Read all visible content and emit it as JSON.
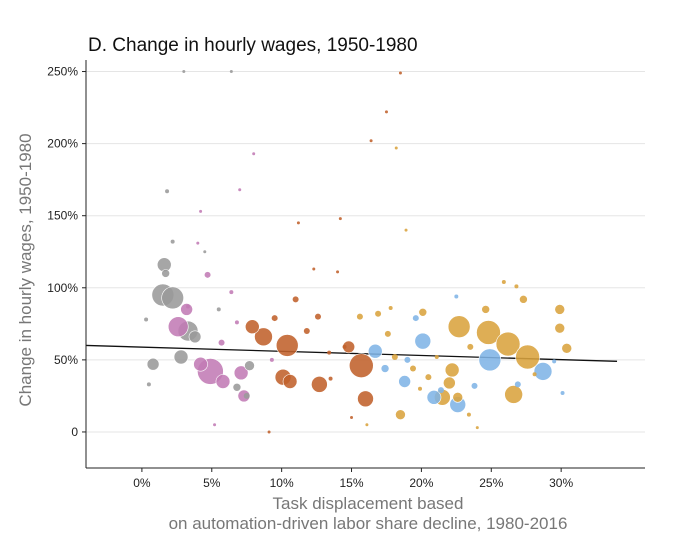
{
  "chart_data": {
    "type": "scatter",
    "title": "D. Change in hourly wages, 1950-1980",
    "xlabel": [
      "Task displacement based",
      "on automation-driven labor share decline, 1980-2016"
    ],
    "ylabel": "Change in hourly wages, 1950-1980",
    "xlim": [
      -4,
      36
    ],
    "ylim": [
      -25,
      258
    ],
    "x_ticks": [
      0,
      5,
      10,
      15,
      20,
      25,
      30
    ],
    "x_tick_labels": [
      "0%",
      "5%",
      "10%",
      "15%",
      "20%",
      "25%",
      "30%"
    ],
    "y_ticks": [
      0,
      50,
      100,
      150,
      200,
      250
    ],
    "y_tick_labels": [
      "0",
      "50%",
      "100%",
      "150%",
      "200%",
      "250%"
    ],
    "grid": "horizontal",
    "legend": "none",
    "colors": {
      "gray": "#9a9a9a",
      "pink": "#c27bb5",
      "brown": "#c0612b",
      "blue": "#80b4e6",
      "gold": "#d9a33d"
    },
    "fit_line": {
      "x": [
        -4,
        34
      ],
      "y": [
        60,
        49
      ]
    },
    "points": [
      {
        "x": 1.5,
        "y": 95,
        "s": 11,
        "g": "gray"
      },
      {
        "x": 2.2,
        "y": 93,
        "s": 11,
        "g": "gray"
      },
      {
        "x": 3.3,
        "y": 70,
        "s": 10,
        "g": "gray"
      },
      {
        "x": 1.6,
        "y": 116,
        "s": 7,
        "g": "gray"
      },
      {
        "x": 2.8,
        "y": 52,
        "s": 7,
        "g": "gray"
      },
      {
        "x": 0.8,
        "y": 47,
        "s": 6,
        "g": "gray"
      },
      {
        "x": 1.7,
        "y": 110,
        "s": 4,
        "g": "gray"
      },
      {
        "x": 3.8,
        "y": 66,
        "s": 6,
        "g": "gray"
      },
      {
        "x": 6.8,
        "y": 31,
        "s": 4,
        "g": "gray"
      },
      {
        "x": 7.7,
        "y": 46,
        "s": 5,
        "g": "gray"
      },
      {
        "x": 7.5,
        "y": 25,
        "s": 3,
        "g": "gray"
      },
      {
        "x": 0.5,
        "y": 33,
        "s": 2,
        "g": "gray"
      },
      {
        "x": 1.8,
        "y": 167,
        "s": 2,
        "g": "gray"
      },
      {
        "x": 2.2,
        "y": 132,
        "s": 2,
        "g": "gray"
      },
      {
        "x": 4.5,
        "y": 125,
        "s": 1.5,
        "g": "gray"
      },
      {
        "x": 3.0,
        "y": 250,
        "s": 1.5,
        "g": "gray"
      },
      {
        "x": 6.4,
        "y": 250,
        "s": 1.5,
        "g": "gray"
      },
      {
        "x": 5.5,
        "y": 85,
        "s": 2,
        "g": "gray"
      },
      {
        "x": 0.3,
        "y": 78,
        "s": 2,
        "g": "gray"
      },
      {
        "x": 2.6,
        "y": 73,
        "s": 10,
        "g": "pink"
      },
      {
        "x": 4.9,
        "y": 42,
        "s": 13,
        "g": "pink"
      },
      {
        "x": 4.2,
        "y": 47,
        "s": 7,
        "g": "pink"
      },
      {
        "x": 5.8,
        "y": 35,
        "s": 7,
        "g": "pink"
      },
      {
        "x": 7.1,
        "y": 41,
        "s": 7,
        "g": "pink"
      },
      {
        "x": 7.3,
        "y": 25,
        "s": 6,
        "g": "pink"
      },
      {
        "x": 3.2,
        "y": 85,
        "s": 6,
        "g": "pink"
      },
      {
        "x": 4.7,
        "y": 109,
        "s": 3,
        "g": "pink"
      },
      {
        "x": 5.7,
        "y": 62,
        "s": 3,
        "g": "pink"
      },
      {
        "x": 6.8,
        "y": 76,
        "s": 2,
        "g": "pink"
      },
      {
        "x": 8.0,
        "y": 193,
        "s": 1.5,
        "g": "pink"
      },
      {
        "x": 7.0,
        "y": 168,
        "s": 1.5,
        "g": "pink"
      },
      {
        "x": 4.0,
        "y": 131,
        "s": 1.5,
        "g": "pink"
      },
      {
        "x": 3.3,
        "y": 87,
        "s": 2,
        "g": "pink"
      },
      {
        "x": 9.3,
        "y": 50,
        "s": 2,
        "g": "pink"
      },
      {
        "x": 4.2,
        "y": 153,
        "s": 1.5,
        "g": "pink"
      },
      {
        "x": 5.2,
        "y": 5,
        "s": 1.5,
        "g": "pink"
      },
      {
        "x": 6.4,
        "y": 97,
        "s": 2,
        "g": "pink"
      },
      {
        "x": 10.4,
        "y": 60,
        "s": 11,
        "g": "brown"
      },
      {
        "x": 8.7,
        "y": 66,
        "s": 9,
        "g": "brown"
      },
      {
        "x": 10.1,
        "y": 38,
        "s": 8,
        "g": "brown"
      },
      {
        "x": 12.7,
        "y": 33,
        "s": 8,
        "g": "brown"
      },
      {
        "x": 7.9,
        "y": 73,
        "s": 7,
        "g": "brown"
      },
      {
        "x": 10.6,
        "y": 35,
        "s": 7,
        "g": "brown"
      },
      {
        "x": 14.8,
        "y": 59,
        "s": 6,
        "g": "brown"
      },
      {
        "x": 16.0,
        "y": 23,
        "s": 8,
        "g": "brown"
      },
      {
        "x": 15.7,
        "y": 46,
        "s": 12,
        "g": "brown"
      },
      {
        "x": 11.0,
        "y": 92,
        "s": 3,
        "g": "brown"
      },
      {
        "x": 9.5,
        "y": 79,
        "s": 3,
        "g": "brown"
      },
      {
        "x": 11.8,
        "y": 70,
        "s": 3,
        "g": "brown"
      },
      {
        "x": 12.6,
        "y": 80,
        "s": 3,
        "g": "brown"
      },
      {
        "x": 13.5,
        "y": 37,
        "s": 2,
        "g": "brown"
      },
      {
        "x": 14.5,
        "y": 59,
        "s": 2,
        "g": "brown"
      },
      {
        "x": 14.0,
        "y": 111,
        "s": 1.5,
        "g": "brown"
      },
      {
        "x": 14.2,
        "y": 148,
        "s": 1.5,
        "g": "brown"
      },
      {
        "x": 11.2,
        "y": 145,
        "s": 1.5,
        "g": "brown"
      },
      {
        "x": 12.3,
        "y": 113,
        "s": 1.5,
        "g": "brown"
      },
      {
        "x": 15.0,
        "y": 10,
        "s": 1.5,
        "g": "brown"
      },
      {
        "x": 16.4,
        "y": 202,
        "s": 1.5,
        "g": "brown"
      },
      {
        "x": 17.5,
        "y": 222,
        "s": 1.5,
        "g": "brown"
      },
      {
        "x": 18.5,
        "y": 249,
        "s": 1.5,
        "g": "brown"
      },
      {
        "x": 13.4,
        "y": 55,
        "s": 2,
        "g": "brown"
      },
      {
        "x": 9.1,
        "y": 0,
        "s": 1.5,
        "g": "brown"
      },
      {
        "x": 16.7,
        "y": 56,
        "s": 7,
        "g": "blue"
      },
      {
        "x": 18.8,
        "y": 35,
        "s": 6,
        "g": "blue"
      },
      {
        "x": 20.9,
        "y": 24,
        "s": 7,
        "g": "blue"
      },
      {
        "x": 20.1,
        "y": 63,
        "s": 8,
        "g": "blue"
      },
      {
        "x": 22.6,
        "y": 19,
        "s": 8,
        "g": "blue"
      },
      {
        "x": 24.9,
        "y": 50,
        "s": 11,
        "g": "blue"
      },
      {
        "x": 28.7,
        "y": 42,
        "s": 9,
        "g": "blue"
      },
      {
        "x": 17.4,
        "y": 44,
        "s": 4,
        "g": "blue"
      },
      {
        "x": 19.6,
        "y": 79,
        "s": 3,
        "g": "blue"
      },
      {
        "x": 21.4,
        "y": 29,
        "s": 3,
        "g": "blue"
      },
      {
        "x": 23.8,
        "y": 32,
        "s": 3,
        "g": "blue"
      },
      {
        "x": 26.9,
        "y": 33,
        "s": 3,
        "g": "blue"
      },
      {
        "x": 29.5,
        "y": 49,
        "s": 2,
        "g": "blue"
      },
      {
        "x": 30.1,
        "y": 27,
        "s": 2,
        "g": "blue"
      },
      {
        "x": 22.5,
        "y": 94,
        "s": 2,
        "g": "blue"
      },
      {
        "x": 19.0,
        "y": 50,
        "s": 3,
        "g": "blue"
      },
      {
        "x": 22.7,
        "y": 73,
        "s": 11,
        "g": "gold"
      },
      {
        "x": 24.8,
        "y": 69,
        "s": 12,
        "g": "gold"
      },
      {
        "x": 26.2,
        "y": 61,
        "s": 12,
        "g": "gold"
      },
      {
        "x": 27.6,
        "y": 52,
        "s": 12,
        "g": "gold"
      },
      {
        "x": 26.6,
        "y": 26,
        "s": 9,
        "g": "gold"
      },
      {
        "x": 22.2,
        "y": 43,
        "s": 7,
        "g": "gold"
      },
      {
        "x": 22.6,
        "y": 24,
        "s": 5,
        "g": "gold"
      },
      {
        "x": 21.5,
        "y": 24,
        "s": 8,
        "g": "gold"
      },
      {
        "x": 22.0,
        "y": 34,
        "s": 6,
        "g": "gold"
      },
      {
        "x": 30.4,
        "y": 58,
        "s": 5,
        "g": "gold"
      },
      {
        "x": 29.9,
        "y": 72,
        "s": 5,
        "g": "gold"
      },
      {
        "x": 29.9,
        "y": 85,
        "s": 5,
        "g": "gold"
      },
      {
        "x": 27.3,
        "y": 92,
        "s": 4,
        "g": "gold"
      },
      {
        "x": 24.6,
        "y": 85,
        "s": 4,
        "g": "gold"
      },
      {
        "x": 23.5,
        "y": 59,
        "s": 3,
        "g": "gold"
      },
      {
        "x": 20.1,
        "y": 83,
        "s": 4,
        "g": "gold"
      },
      {
        "x": 18.5,
        "y": 12,
        "s": 5,
        "g": "gold"
      },
      {
        "x": 18.1,
        "y": 52,
        "s": 3,
        "g": "gold"
      },
      {
        "x": 17.6,
        "y": 68,
        "s": 3,
        "g": "gold"
      },
      {
        "x": 19.4,
        "y": 44,
        "s": 3,
        "g": "gold"
      },
      {
        "x": 20.5,
        "y": 38,
        "s": 3,
        "g": "gold"
      },
      {
        "x": 15.6,
        "y": 80,
        "s": 3,
        "g": "gold"
      },
      {
        "x": 16.9,
        "y": 82,
        "s": 3,
        "g": "gold"
      },
      {
        "x": 17.8,
        "y": 86,
        "s": 2,
        "g": "gold"
      },
      {
        "x": 19.9,
        "y": 30,
        "s": 2,
        "g": "gold"
      },
      {
        "x": 21.1,
        "y": 52,
        "s": 2,
        "g": "gold"
      },
      {
        "x": 25.9,
        "y": 104,
        "s": 2,
        "g": "gold"
      },
      {
        "x": 26.8,
        "y": 101,
        "s": 2,
        "g": "gold"
      },
      {
        "x": 28.1,
        "y": 40,
        "s": 2,
        "g": "gold"
      },
      {
        "x": 23.4,
        "y": 12,
        "s": 2,
        "g": "gold"
      },
      {
        "x": 18.9,
        "y": 140,
        "s": 1.5,
        "g": "gold"
      },
      {
        "x": 18.2,
        "y": 197,
        "s": 1.5,
        "g": "gold"
      },
      {
        "x": 16.1,
        "y": 5,
        "s": 1.5,
        "g": "gold"
      },
      {
        "x": 24.0,
        "y": 3,
        "s": 1.5,
        "g": "gold"
      }
    ]
  }
}
